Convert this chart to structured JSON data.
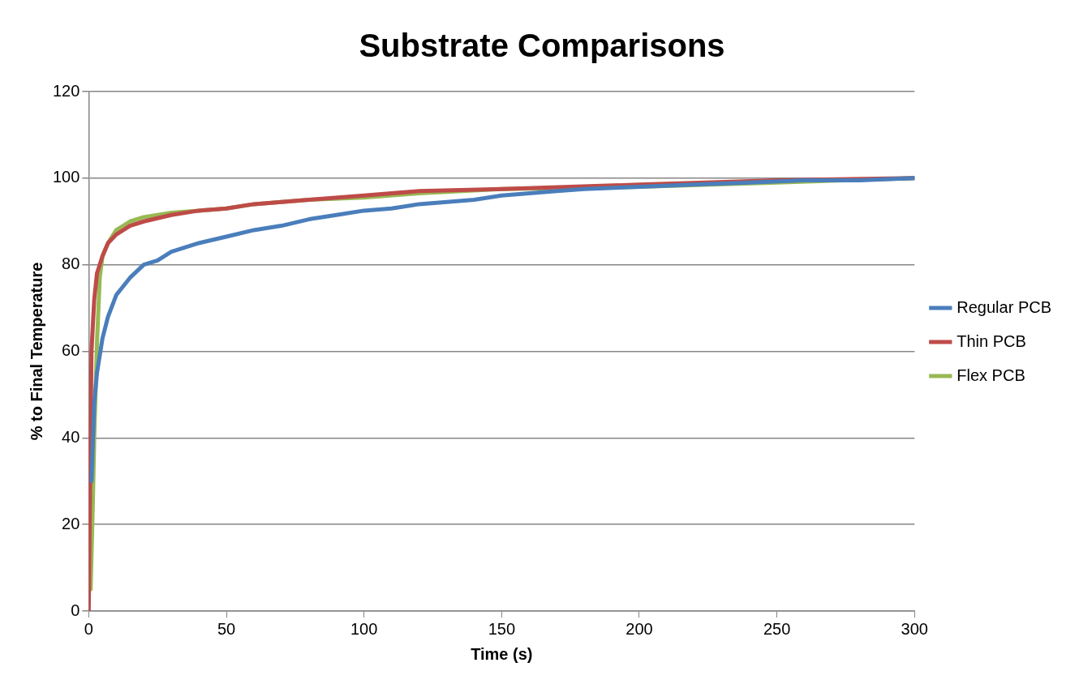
{
  "chart_data": {
    "type": "line",
    "title": "Substrate Comparisons",
    "xlabel": "Time (s)",
    "ylabel": "% to Final Temperature",
    "xlim": [
      0,
      300
    ],
    "xticks": [
      0,
      50,
      100,
      150,
      200,
      250,
      300
    ],
    "ylim": [
      0,
      120
    ],
    "yticks": [
      0,
      20,
      40,
      60,
      80,
      100,
      120
    ],
    "grid": "y",
    "legend": "right",
    "marker": "none",
    "line_style": "solid",
    "series": [
      {
        "name": "Regular PCB",
        "color": "#4a7ebb",
        "x": [
          1,
          2,
          3,
          5,
          7,
          10,
          15,
          20,
          25,
          30,
          40,
          50,
          60,
          70,
          80,
          90,
          100,
          110,
          120,
          130,
          140,
          150,
          160,
          170,
          180,
          200,
          220,
          240,
          260,
          280,
          300
        ],
        "values": [
          30,
          48,
          55,
          63,
          68,
          73,
          77,
          80,
          81,
          83,
          85,
          86.5,
          88,
          89,
          90.5,
          91.5,
          92.5,
          93,
          94,
          94.5,
          95,
          96,
          96.5,
          97,
          97.5,
          98,
          98.5,
          99,
          99.5,
          99.5,
          100
        ]
      },
      {
        "name": "Thin PCB",
        "color": "#be4b48",
        "x": [
          0,
          0.5,
          1,
          2,
          3,
          5,
          7,
          10,
          15,
          20,
          30,
          40,
          50,
          60,
          80,
          100,
          120,
          150,
          200,
          250,
          300
        ],
        "values": [
          0,
          30,
          60,
          72,
          78,
          82,
          85,
          87,
          89,
          90,
          91.5,
          92.5,
          93,
          94,
          95,
          96,
          97,
          97.5,
          98.5,
          99.5,
          100
        ]
      },
      {
        "name": "Flex PCB",
        "color": "#98b954",
        "x": [
          0.7,
          1.5,
          2,
          3,
          4,
          5,
          7,
          10,
          15,
          20,
          30,
          40,
          50,
          60,
          80,
          100,
          120,
          150,
          200,
          250,
          300
        ],
        "values": [
          5,
          25,
          40,
          62,
          77,
          82,
          85,
          88,
          90,
          91,
          92,
          92.5,
          93,
          94,
          95,
          95.5,
          96.5,
          97.5,
          98,
          99,
          100
        ]
      }
    ]
  }
}
